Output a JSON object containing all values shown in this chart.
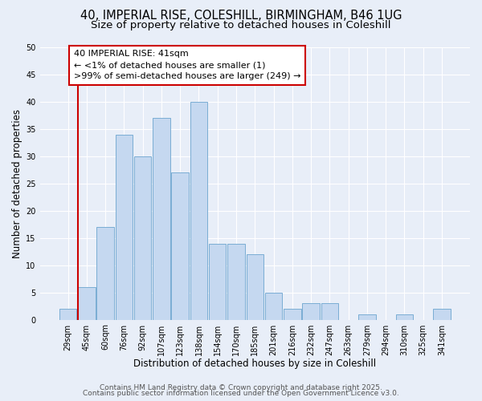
{
  "title": "40, IMPERIAL RISE, COLESHILL, BIRMINGHAM, B46 1UG",
  "subtitle": "Size of property relative to detached houses in Coleshill",
  "xlabel": "Distribution of detached houses by size in Coleshill",
  "ylabel": "Number of detached properties",
  "footer1": "Contains HM Land Registry data © Crown copyright and database right 2025.",
  "footer2": "Contains public sector information licensed under the Open Government Licence v3.0.",
  "annotation_line1": "40 IMPERIAL RISE: 41sqm",
  "annotation_line2": "← <1% of detached houses are smaller (1)",
  "annotation_line3": ">99% of semi-detached houses are larger (249) →",
  "bar_labels": [
    "29sqm",
    "45sqm",
    "60sqm",
    "76sqm",
    "92sqm",
    "107sqm",
    "123sqm",
    "138sqm",
    "154sqm",
    "170sqm",
    "185sqm",
    "201sqm",
    "216sqm",
    "232sqm",
    "247sqm",
    "263sqm",
    "279sqm",
    "294sqm",
    "310sqm",
    "325sqm",
    "341sqm"
  ],
  "bar_values": [
    2,
    6,
    17,
    34,
    30,
    37,
    27,
    40,
    14,
    14,
    12,
    5,
    2,
    3,
    3,
    0,
    1,
    0,
    1,
    0,
    2
  ],
  "bar_color": "#c5d8f0",
  "bar_edgecolor": "#7aadd4",
  "marker_color": "#cc0000",
  "ylim": [
    0,
    50
  ],
  "yticks": [
    0,
    5,
    10,
    15,
    20,
    25,
    30,
    35,
    40,
    45,
    50
  ],
  "bg_color": "#e8eef8",
  "plot_bg_color": "#e8eef8",
  "grid_color": "#ffffff",
  "annotation_box_color": "#cc0000",
  "title_fontsize": 10.5,
  "subtitle_fontsize": 9.5,
  "axis_label_fontsize": 8.5,
  "tick_fontsize": 7,
  "annotation_fontsize": 8,
  "footer_fontsize": 6.5
}
